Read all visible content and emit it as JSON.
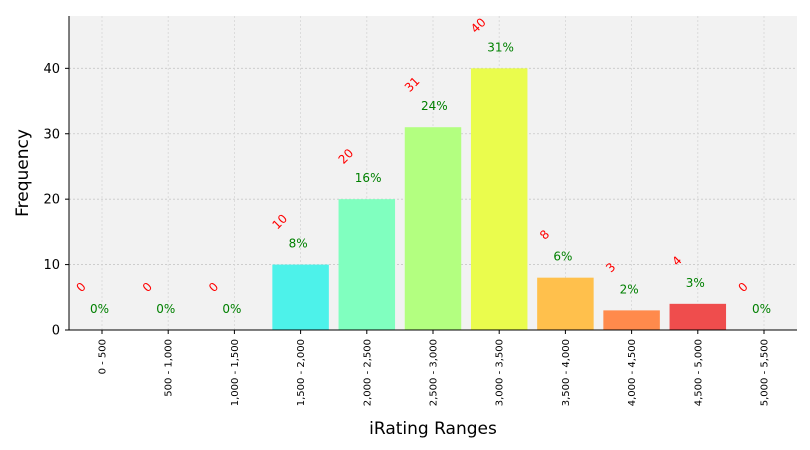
{
  "chart_data": {
    "type": "bar",
    "xlabel": "iRating Ranges",
    "ylabel": "Frequency",
    "ylim": [
      0,
      48
    ],
    "yticks": [
      0,
      10,
      20,
      30,
      40
    ],
    "grid": true,
    "categories": [
      "0 - 500",
      "500 - 1,000",
      "1,000 - 1,500",
      "1,500 - 2,000",
      "2,000 - 2,500",
      "2,500 - 3,000",
      "3,000 - 3,500",
      "3,500 - 4,000",
      "4,000 - 4,500",
      "4,500 - 5,000",
      "5,000 - 5,500"
    ],
    "values": [
      0,
      0,
      0,
      10,
      20,
      31,
      40,
      8,
      3,
      4,
      0
    ],
    "count_labels": [
      "0",
      "0",
      "0",
      "10",
      "20",
      "31",
      "40",
      "8",
      "3",
      "4",
      "0"
    ],
    "percent_labels": [
      "0%",
      "0%",
      "0%",
      "8%",
      "16%",
      "24%",
      "31%",
      "6%",
      "2%",
      "3%",
      "0%"
    ],
    "colors": [
      "#2b4bf2",
      "#1c8cf4",
      "#14c8f2",
      "#4df2ea",
      "#80ffbf",
      "#b3ff80",
      "#eafc4d",
      "#ffc04c",
      "#ff8a4c",
      "#ef4d4d",
      "#b2182b"
    ],
    "label_colors": {
      "count": "#ff0000",
      "percent": "#008000"
    },
    "plot_background": "#f2f2f2"
  }
}
